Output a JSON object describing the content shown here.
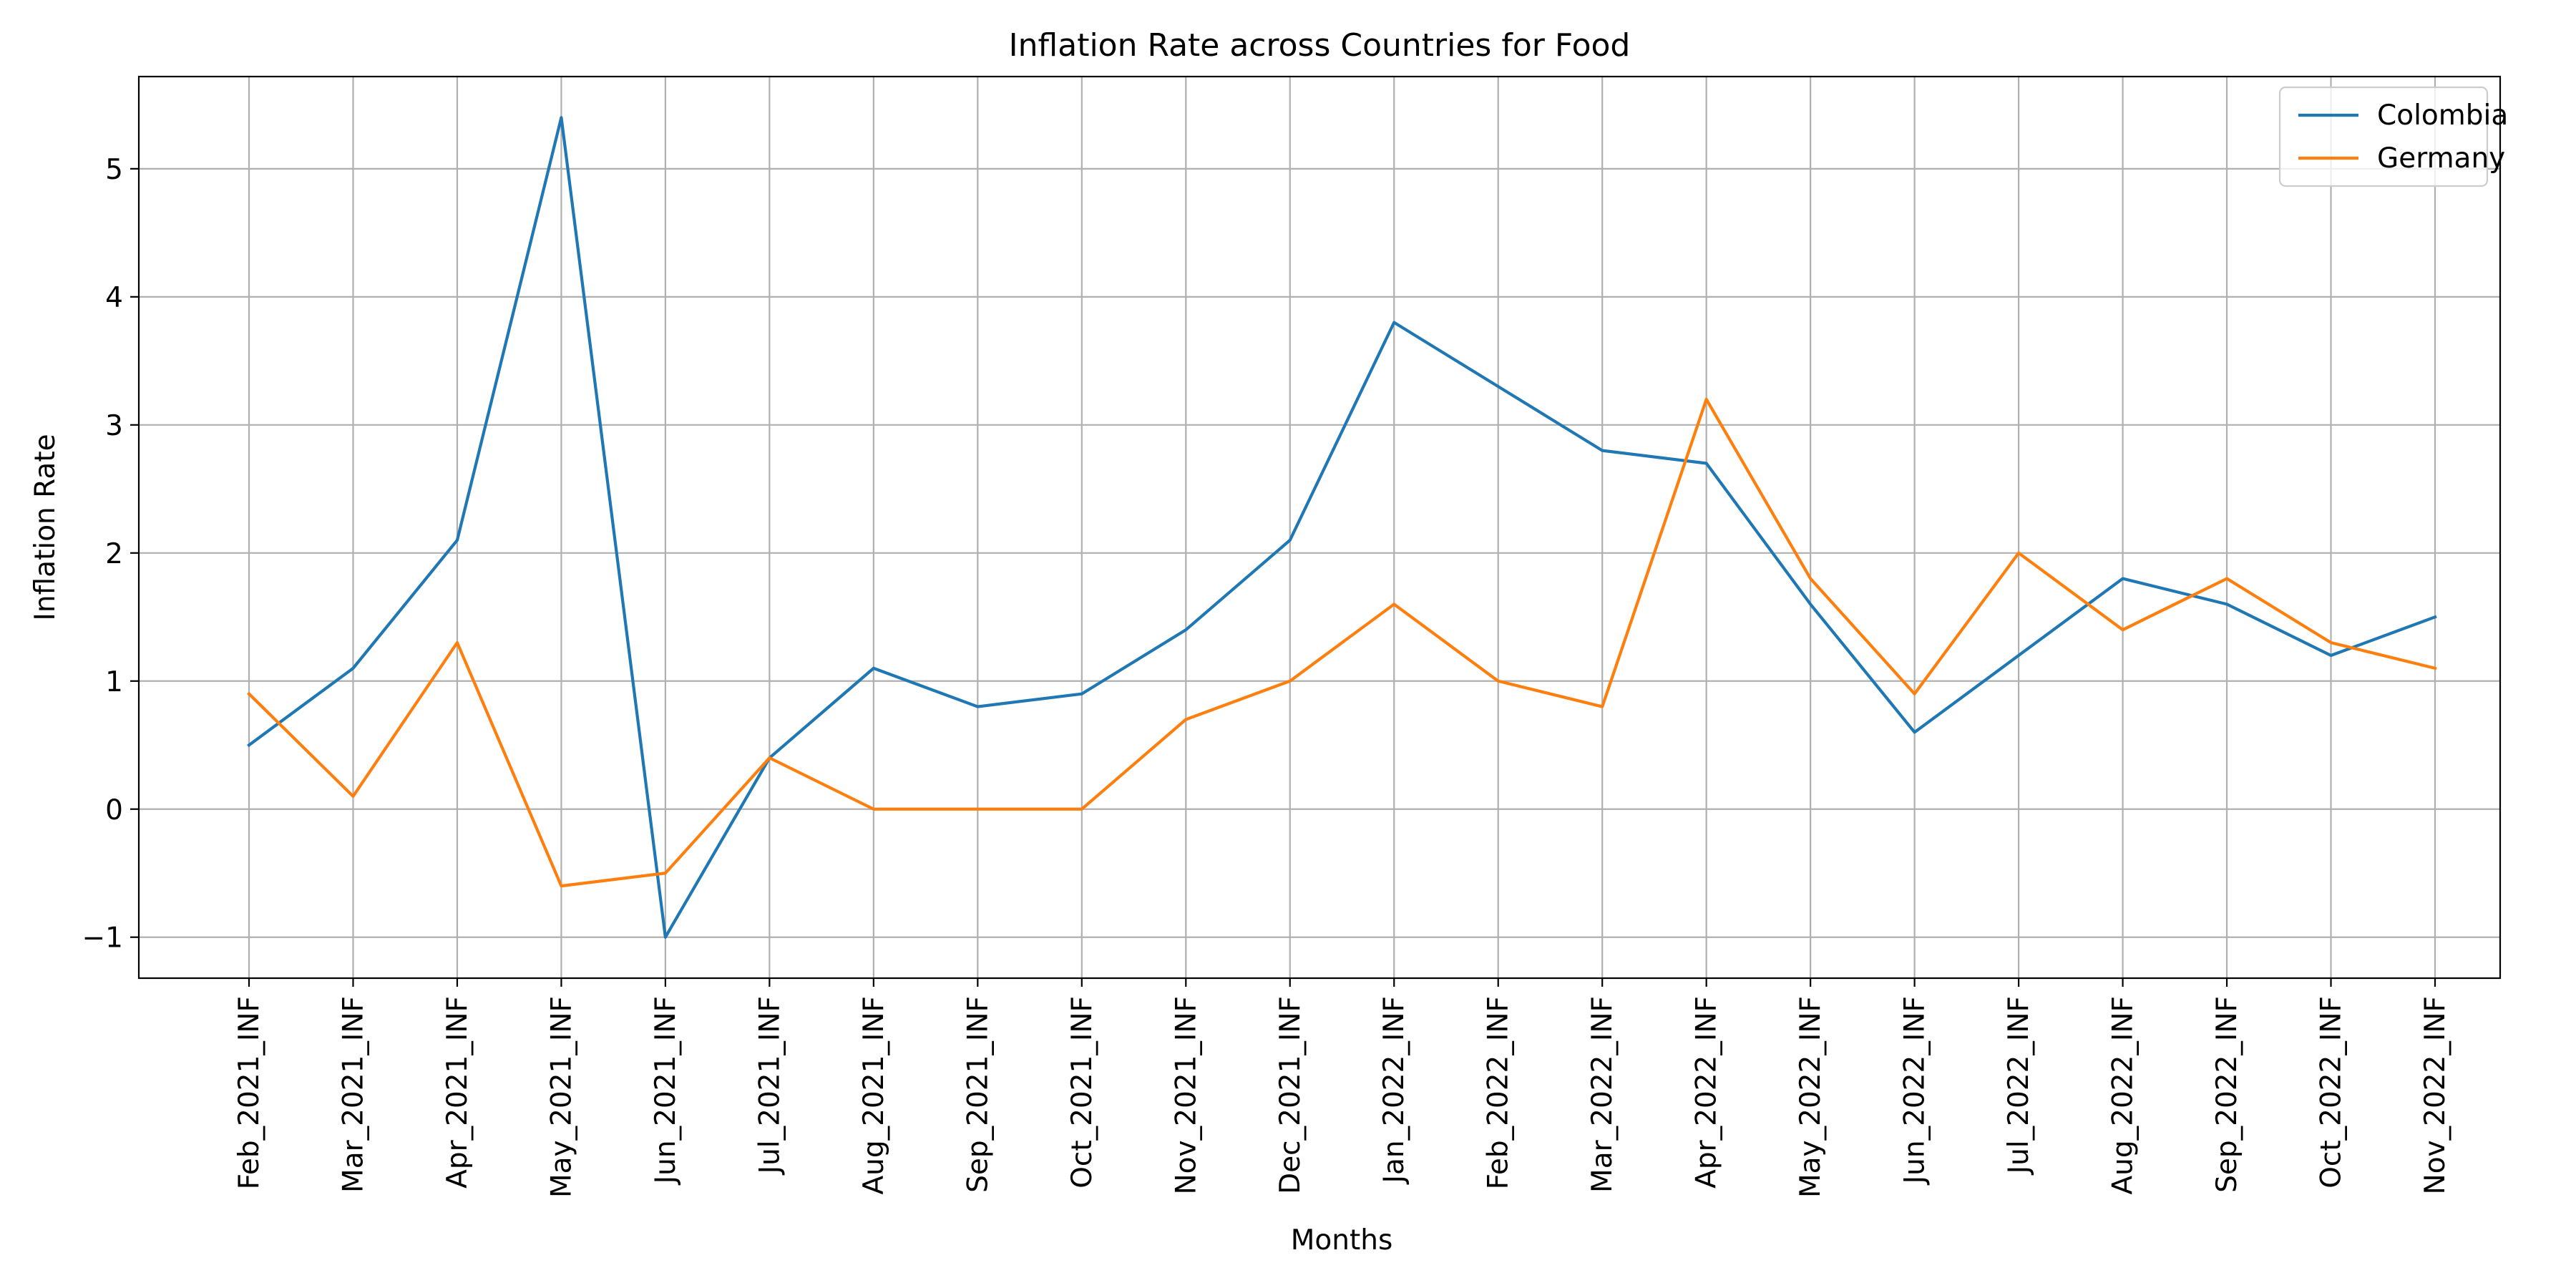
{
  "chart_data": {
    "type": "line",
    "title": "Inflation Rate across Countries for Food",
    "xlabel": "Months",
    "ylabel": "Inflation Rate",
    "categories": [
      "Feb_2021_INF",
      "Mar_2021_INF",
      "Apr_2021_INF",
      "May_2021_INF",
      "Jun_2021_INF",
      "Jul_2021_INF",
      "Aug_2021_INF",
      "Sep_2021_INF",
      "Oct_2021_INF",
      "Nov_2021_INF",
      "Dec_2021_INF",
      "Jan_2022_INF",
      "Feb_2022_INF",
      "Mar_2022_INF",
      "Apr_2022_INF",
      "May_2022_INF",
      "Jun_2022_INF",
      "Jul_2022_INF",
      "Aug_2022_INF",
      "Sep_2022_INF",
      "Oct_2022_INF",
      "Nov_2022_INF"
    ],
    "series": [
      {
        "name": "Colombia",
        "color": "#1f77b4",
        "values": [
          0.5,
          1.1,
          2.1,
          5.4,
          -1.0,
          0.4,
          1.1,
          0.8,
          0.9,
          1.4,
          2.1,
          3.8,
          3.3,
          2.8,
          2.7,
          1.6,
          0.6,
          1.2,
          1.8,
          1.6,
          1.2,
          1.5
        ]
      },
      {
        "name": "Germany",
        "color": "#ff7f0e",
        "values": [
          0.9,
          0.1,
          1.3,
          -0.6,
          -0.5,
          0.4,
          0.0,
          0.0,
          0.0,
          0.7,
          1.0,
          1.6,
          1.0,
          0.8,
          3.2,
          1.8,
          0.9,
          2.0,
          1.4,
          1.8,
          1.3,
          1.1
        ]
      }
    ],
    "ylim": [
      -1.32,
      5.72
    ],
    "yticks": [
      -1,
      0,
      1,
      2,
      3,
      4,
      5
    ],
    "ytick_labels": [
      "−1",
      "0",
      "1",
      "2",
      "3",
      "4",
      "5"
    ],
    "grid": true,
    "legend": "top-right"
  }
}
